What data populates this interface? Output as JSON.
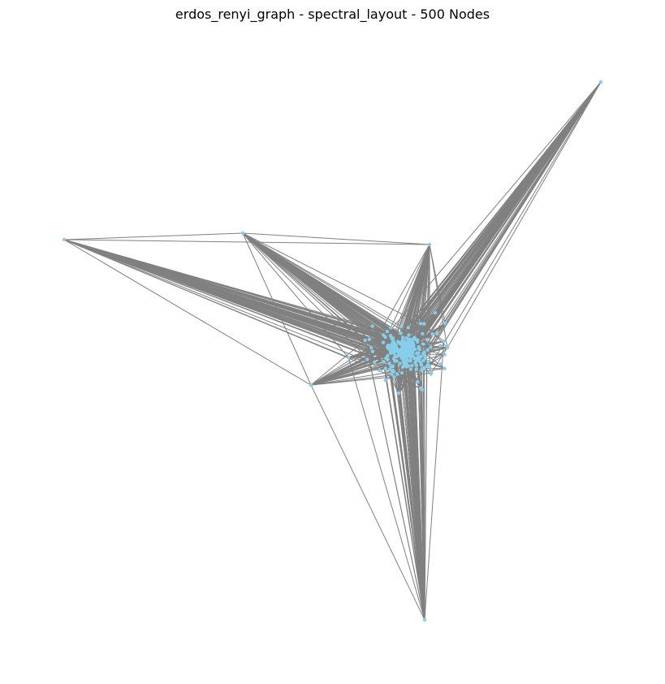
{
  "title": "erdos_renyi_graph - spectral_layout - 500 Nodes",
  "colors": {
    "edge": "#808080",
    "node": "#87ceeb",
    "background": "#ffffff"
  }
}
